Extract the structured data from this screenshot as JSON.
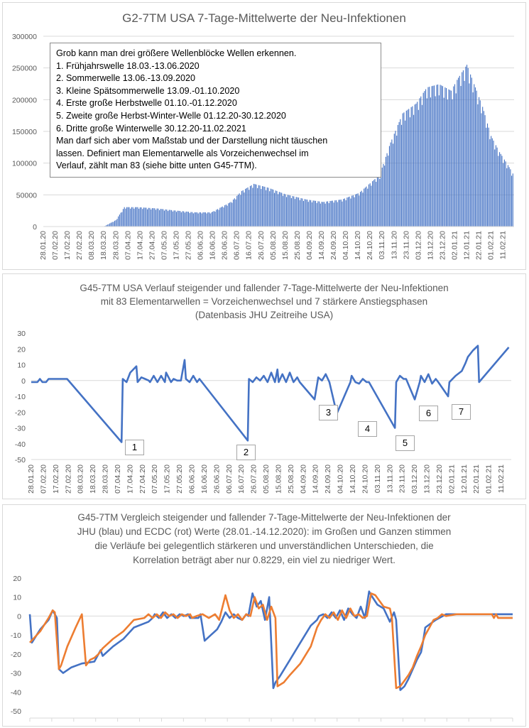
{
  "colors": {
    "blue": "#4472c4",
    "orange": "#ed7d31",
    "grid": "#d9d9d9",
    "text": "#595959"
  },
  "chart_data": [
    {
      "type": "bar",
      "title": "G2-7TM USA 7-Tage-Mittelwerte der Neu-Infektionen",
      "ylim": [
        0,
        300000
      ],
      "yticks": [
        "0",
        "50000",
        "100000",
        "150000",
        "200000",
        "250000",
        "300000"
      ],
      "xtick_labels": [
        "28.01.20",
        "07.02.20",
        "17.02.20",
        "27.02.20",
        "08.03.20",
        "18.03.20",
        "28.03.20",
        "07.04.20",
        "17.04.20",
        "27.04.20",
        "07.05.20",
        "17.05.20",
        "27.05.20",
        "06.06.20",
        "16.06.20",
        "26.06.20",
        "06.07.20",
        "16.07.20",
        "26.07.20",
        "05.08.20",
        "15.08.20",
        "25.08.20",
        "04.09.20",
        "14.09.20",
        "24.09.20",
        "04.10.20",
        "14.10.20",
        "24.10.20",
        "03.11.20",
        "13.11.20",
        "23.11.20",
        "03.12.20",
        "13.12.20",
        "23.12.20",
        "02.01.21",
        "12.01.21",
        "22.01.21",
        "01.02.21",
        "11.02.21"
      ],
      "x": [
        "28.01.20",
        "18.03.20",
        "28.03.20",
        "04.04.20",
        "15.04.20",
        "01.05.20",
        "15.05.20",
        "01.06.20",
        "15.06.20",
        "01.07.20",
        "10.07.20",
        "20.07.20",
        "01.08.20",
        "15.08.20",
        "01.09.20",
        "15.09.20",
        "01.10.20",
        "15.10.20",
        "01.11.20",
        "10.11.20",
        "20.11.20",
        "01.12.20",
        "10.12.20",
        "20.12.20",
        "30.12.20",
        "05.01.21",
        "12.01.21",
        "18.01.21",
        "25.01.21",
        "01.02.21",
        "08.02.21",
        "15.02.21",
        "19.02.21"
      ],
      "values": [
        0,
        0,
        10000,
        30000,
        30000,
        28000,
        25000,
        22000,
        22000,
        38000,
        55000,
        66000,
        60000,
        50000,
        42000,
        38000,
        42000,
        52000,
        80000,
        130000,
        175000,
        190000,
        215000,
        220000,
        210000,
        230000,
        250000,
        220000,
        185000,
        140000,
        115000,
        95000,
        82000
      ],
      "annotation": [
        "Grob kann man drei größere Wellenblöcke Wellen erkennen.",
        "1. Frühjahrswelle 18.03.-13.06.2020",
        "2. Sommerwelle  13.06.-13.09.2020",
        "3. Kleine Spätsommerwelle 13.09.-01.10.2020",
        "4. Erste große Herbstwelle 01.10.-01.12.2020",
        "5. Zweite große Herbst-Winter-Welle 01.12.20-30.12.2020",
        "6. Dritte große Winterwelle 30.12.20-11.02.2021",
        "Man darf sich aber vom Maßstab und der Darstellung nicht täuschen",
        "lassen. Definiert man Elementarwelle als Vorzeichenwechsel im",
        "Verlauf, zählt man 83 (siehe bitte unten G45-7TM)."
      ]
    },
    {
      "type": "line",
      "title": "G45-7TM USA Verlauf steigender und fallender 7-Tage-Mittelwerte der Neu-Infektionen\nmit 83 Elementarwellen = Vorzeichenwechsel  und 7 stärkere Anstiegsphasen\n(Datenbasis JHU Zeitreihe USA)",
      "ylim": [
        -50,
        30
      ],
      "yticks": [
        "30",
        "20",
        "10",
        "0",
        "-10",
        "-20",
        "-30",
        "-40",
        "-50"
      ],
      "xtick_labels": [
        "28.01.20",
        "07.02.20",
        "17.02.20",
        "27.02.20",
        "08.03.20",
        "18.03.20",
        "28.03.20",
        "07.04.20",
        "17.04.20",
        "27.04.20",
        "07.05.20",
        "17.05.20",
        "27.05.20",
        "06.06.20",
        "16.06.20",
        "26.06.20",
        "06.07.20",
        "16.07.20",
        "26.07.20",
        "05.08.20",
        "15.08.20",
        "25.08.20",
        "04.09.20",
        "14.09.20",
        "24.09.20",
        "04.10.20",
        "14.10.20",
        "24.10.20",
        "03.11.20",
        "13.11.20",
        "23.11.20",
        "03.12.20",
        "13.12.20",
        "23.12.20",
        "02.01.21",
        "12.01.21",
        "22.01.21",
        "01.02.21",
        "11.02.21"
      ],
      "series": [
        {
          "color": "#4472c4",
          "x": [
            "28.01.20",
            "02.02.20",
            "04.02.20",
            "06.02.20",
            "09.02.20",
            "11.02.20",
            "26.02.20",
            "10.04.20",
            "11.04.20",
            "14.04.20",
            "17.04.20",
            "22.04.20",
            "23.04.20",
            "26.04.20",
            "29.04.20",
            "02.05.20",
            "03.05.20",
            "06.05.20",
            "09.05.20",
            "12.05.20",
            "15.05.20",
            "16.05.20",
            "20.05.20",
            "22.05.20",
            "25.05.20",
            "28.05.20",
            "31.05.20",
            "01.06.20",
            "04.06.20",
            "07.06.20",
            "10.06.20",
            "12.06.20",
            "21.07.20",
            "22.07.20",
            "25.07.20",
            "28.07.20",
            "31.07.20",
            "03.08.20",
            "06.08.20",
            "09.08.20",
            "12.08.20",
            "14.08.20",
            "15.08.20",
            "18.08.20",
            "21.08.20",
            "24.08.20",
            "27.08.20",
            "30.08.20",
            "01.09.20",
            "13.09.20",
            "16.09.20",
            "19.09.20",
            "22.09.20",
            "25.09.20",
            "01.10.20",
            "12.10.20",
            "13.10.20",
            "16.10.20",
            "19.10.20",
            "22.10.20",
            "25.10.20",
            "27.10.20",
            "17.11.20",
            "18.11.20",
            "21.11.20",
            "24.11.20",
            "26.11.20",
            "03.12.20",
            "07.12.20",
            "08.12.20",
            "11.12.20",
            "14.12.20",
            "17.12.20",
            "20.12.20",
            "22.12.20",
            "30.12.20",
            "31.12.20",
            "05.01.21",
            "10.01.21",
            "13.01.21",
            "15.01.21",
            "19.01.21",
            "23.01.21",
            "24.01.21",
            "17.02.21"
          ],
          "y": [
            -1,
            -1,
            1,
            -1,
            -1,
            1,
            1,
            -39,
            1,
            -1,
            5,
            9,
            -1,
            2,
            1,
            0,
            -1,
            3,
            -1,
            3,
            -1,
            5,
            -1,
            1,
            0,
            0,
            13,
            1,
            -1,
            3,
            -1,
            1,
            -38,
            1,
            -1,
            2,
            0,
            3,
            -1,
            5,
            -1,
            7,
            -1,
            4,
            -1,
            5,
            -1,
            2,
            -1,
            -12,
            2,
            0,
            4,
            -1,
            -21,
            -1,
            3,
            -1,
            -2,
            1,
            -1,
            -1,
            -30,
            -1,
            3,
            1,
            1,
            -12,
            -1,
            3,
            -1,
            4,
            -2,
            1,
            -1,
            -10,
            -1,
            3,
            6,
            11,
            15,
            19,
            22,
            -1,
            21
          ]
        }
      ],
      "labels": [
        "1",
        "2",
        "3",
        "4",
        "5",
        "6",
        "7"
      ]
    },
    {
      "type": "line",
      "title": "G45-7TM Vergleich steigender und fallender 7-Tage-Mittelwerte der Neu-Infektionen der\nJHU (blau) und ECDC (rot) Werte (28.01.-14.12.2020): im Großen und Ganzen stimmen\ndie Verläufe bei gelegentlich stärkeren und unverständlichen Unterschieden, die\nKorrelation beträgt aber nur 0.8229, ein viel zu niedriger Wert.",
      "ylim": [
        -50,
        20
      ],
      "yticks": [
        "20",
        "10",
        "0",
        "-10",
        "-20",
        "-30",
        "-40",
        "-50"
      ],
      "series": [
        {
          "name": "JHU",
          "color": "#4472c4",
          "x": [
            0,
            1,
            5,
            9,
            11,
            12,
            13,
            14,
            16,
            20,
            25,
            31,
            33,
            34,
            35,
            40,
            45,
            50,
            57,
            59,
            60,
            62,
            64,
            66,
            68,
            70,
            72,
            74,
            76,
            77,
            81,
            82,
            84,
            87,
            90,
            92,
            94,
            96,
            98,
            100,
            102,
            104,
            105,
            107,
            109,
            111,
            113,
            115,
            117,
            118,
            120,
            125,
            130,
            135,
            138,
            139,
            141,
            143,
            145,
            147,
            149,
            151,
            153,
            155,
            157,
            159,
            161,
            163,
            164,
            167,
            170,
            173,
            175,
            176,
            178,
            180,
            182,
            184,
            186,
            188,
            189,
            190,
            195,
            200,
            205,
            210,
            215,
            219,
            222,
            224,
            228,
            230,
            232
          ],
          "y": [
            1,
            -14,
            -7,
            -2,
            3,
            1,
            -1,
            -28,
            -30,
            -27,
            -25,
            -24,
            -20,
            -18,
            -21,
            -16,
            -12,
            -6,
            -3,
            -1,
            1,
            -1,
            2,
            -1,
            1,
            -1,
            1,
            0,
            1,
            -1,
            -1,
            1,
            -13,
            -10,
            -7,
            -3,
            2,
            -1,
            1,
            -1,
            -2,
            1,
            0,
            12,
            5,
            8,
            -2,
            10,
            -38,
            -35,
            -32,
            -23,
            -14,
            -5,
            -2,
            0,
            1,
            -1,
            2,
            -1,
            3,
            -2,
            4,
            1,
            -1,
            5,
            -1,
            13,
            11,
            6,
            4,
            -3,
            2,
            -2,
            -39,
            -37,
            -33,
            -28,
            -23,
            -19,
            -13,
            -6,
            -2,
            1,
            1,
            1,
            1,
            1,
            1,
            1,
            1,
            1,
            1
          ]
        },
        {
          "name": "ECDC",
          "color": "#ed7d31",
          "x": [
            0,
            5,
            9,
            11,
            12,
            14,
            15,
            18,
            22,
            25,
            27,
            29,
            31,
            33,
            35,
            40,
            45,
            50,
            55,
            57,
            59,
            61,
            63,
            65,
            67,
            69,
            71,
            73,
            75,
            77,
            78,
            80,
            83,
            86,
            89,
            91,
            94,
            96,
            98,
            100,
            102,
            104,
            106,
            108,
            110,
            112,
            114,
            116,
            118,
            119,
            122,
            125,
            130,
            135,
            138,
            140,
            142,
            144,
            146,
            148,
            150,
            152,
            154,
            156,
            158,
            160,
            162,
            164,
            166,
            170,
            173,
            174,
            176,
            178,
            180,
            182,
            184,
            186,
            188,
            190,
            192,
            194,
            196,
            198,
            200,
            205,
            210,
            215,
            220,
            222,
            223,
            224,
            225,
            230,
            232
          ],
          "y": [
            -14,
            -8,
            -1,
            3,
            2,
            -28,
            -26,
            -16,
            -6,
            1,
            -26,
            -23,
            -22,
            -20,
            -17,
            -12,
            -8,
            -2,
            -1,
            1,
            -1,
            1,
            -1,
            2,
            0,
            1,
            -1,
            1,
            0,
            1,
            -1,
            0,
            1,
            -1,
            1,
            -2,
            11,
            3,
            -1,
            1,
            -2,
            1,
            0,
            10,
            4,
            6,
            -2,
            5,
            -1,
            -37,
            -35,
            -31,
            -25,
            -16,
            -6,
            -2,
            1,
            -1,
            2,
            -2,
            3,
            -1,
            4,
            0,
            1,
            -1,
            0,
            12,
            11,
            5,
            4,
            -1,
            -38,
            -37,
            -34,
            -31,
            -27,
            -21,
            -16,
            -10,
            -6,
            -2,
            -1,
            1,
            0,
            1,
            1,
            1,
            1,
            1,
            -1,
            1,
            -1,
            -1,
            -1
          ]
        }
      ],
      "x_count": 232
    }
  ]
}
